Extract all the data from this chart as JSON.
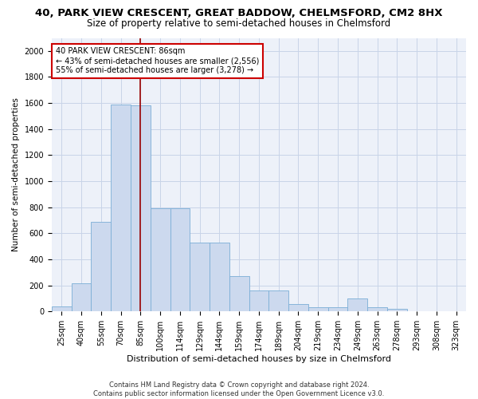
{
  "title1": "40, PARK VIEW CRESCENT, GREAT BADDOW, CHELMSFORD, CM2 8HX",
  "title2": "Size of property relative to semi-detached houses in Chelmsford",
  "xlabel": "Distribution of semi-detached houses by size in Chelmsford",
  "ylabel": "Number of semi-detached properties",
  "footnote": "Contains HM Land Registry data © Crown copyright and database right 2024.\nContains public sector information licensed under the Open Government Licence v3.0.",
  "categories": [
    "25sqm",
    "40sqm",
    "55sqm",
    "70sqm",
    "85sqm",
    "100sqm",
    "114sqm",
    "129sqm",
    "144sqm",
    "159sqm",
    "174sqm",
    "189sqm",
    "204sqm",
    "219sqm",
    "234sqm",
    "249sqm",
    "263sqm",
    "278sqm",
    "293sqm",
    "308sqm",
    "323sqm"
  ],
  "values": [
    40,
    215,
    690,
    1590,
    1580,
    790,
    790,
    530,
    530,
    270,
    160,
    160,
    55,
    30,
    30,
    100,
    30,
    20,
    0,
    0,
    0
  ],
  "bar_color": "#ccd9ee",
  "bar_edge_color": "#7aaed6",
  "property_line_x": 4,
  "property_line_color": "#990000",
  "annotation_text": "40 PARK VIEW CRESCENT: 86sqm\n← 43% of semi-detached houses are smaller (2,556)\n55% of semi-detached houses are larger (3,278) →",
  "annotation_box_color": "#cc0000",
  "ylim": [
    0,
    2100
  ],
  "yticks": [
    0,
    200,
    400,
    600,
    800,
    1000,
    1200,
    1400,
    1600,
    1800,
    2000
  ],
  "grid_color": "#c8d4e8",
  "title1_fontsize": 9.5,
  "title2_fontsize": 8.5,
  "xlabel_fontsize": 8,
  "ylabel_fontsize": 7.5,
  "tick_fontsize": 7,
  "annotation_fontsize": 7,
  "footnote_fontsize": 6
}
